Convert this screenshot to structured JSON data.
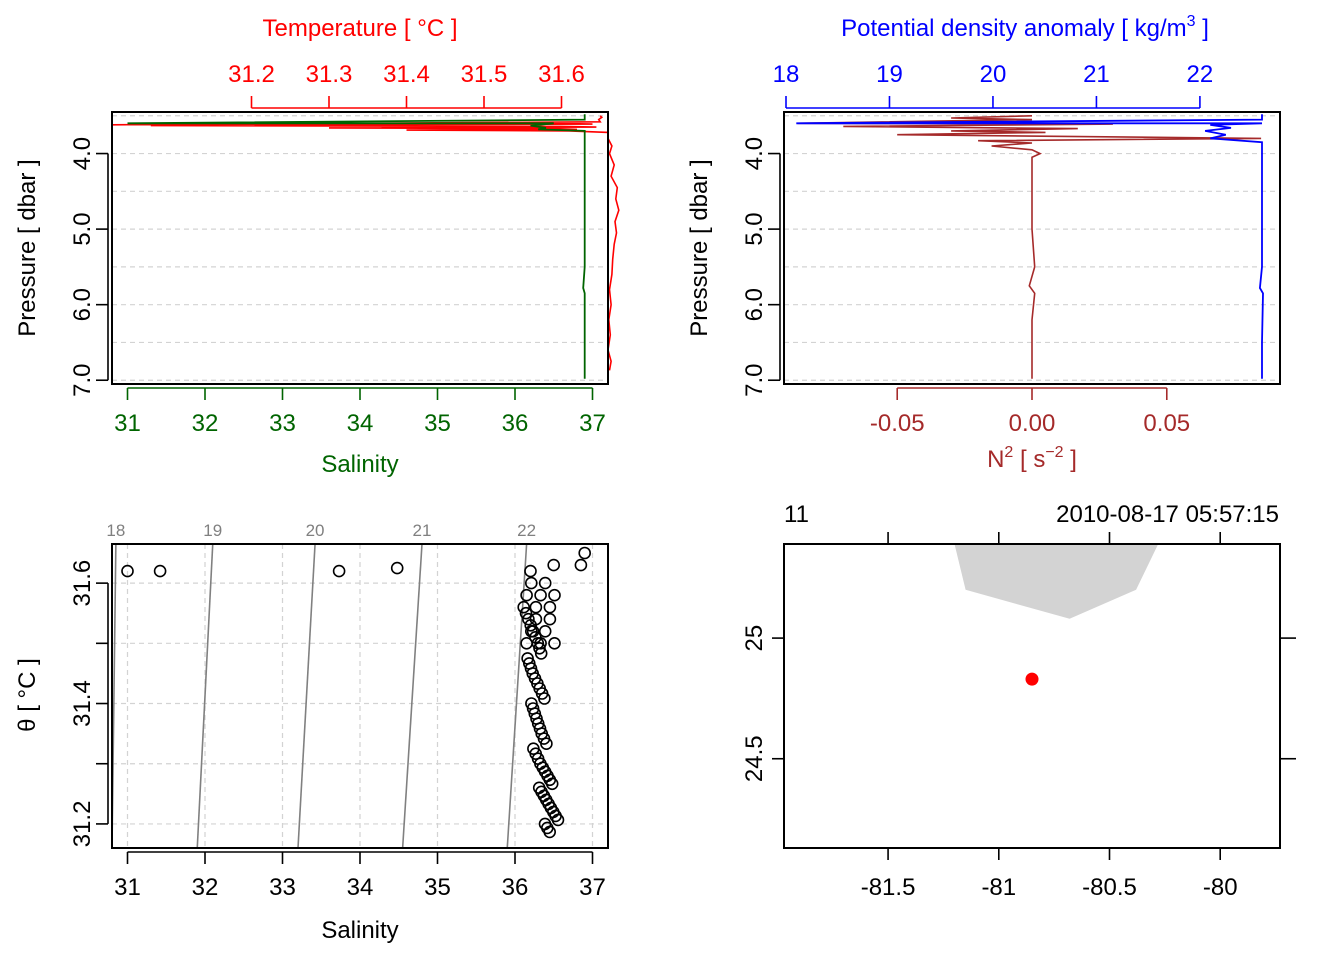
{
  "colors": {
    "temperature": "#ff0000",
    "salinity": "#006400",
    "density": "#0000ff",
    "n2": "#a52a2a",
    "isopycnal": "#808080",
    "land": "#d3d3d3",
    "station": "#ff0000",
    "grid": "#d3d3d3",
    "axis": "#000000"
  },
  "chart_data": [
    {
      "id": "profile_TS",
      "type": "line",
      "title": "Temperature [ °C ]",
      "xlabel": "Salinity",
      "ylabel": "Pressure [ dbar ]",
      "top_axis": {
        "label": "Temperature [ °C ]",
        "ticks": [
          "31.2",
          "31.3",
          "31.4",
          "31.5",
          "31.6"
        ],
        "range": [
          31.02,
          31.66
        ]
      },
      "bottom_axis": {
        "label": "Salinity",
        "ticks": [
          "31",
          "32",
          "33",
          "34",
          "35",
          "36",
          "37"
        ],
        "range": [
          30.8,
          37.2
        ]
      },
      "y_axis": {
        "ticks": [
          "4.0",
          "5.0",
          "6.0",
          "7.0"
        ],
        "range": [
          3.45,
          7.05
        ],
        "reversed": true
      },
      "grid": true,
      "series": [
        {
          "name": "Temperature",
          "axis": "top",
          "points": [
            [
              31.65,
              3.5
            ],
            [
              31.652,
              3.52
            ],
            [
              31.648,
              3.55
            ],
            [
              31.65,
              3.58
            ],
            [
              31.02,
              3.62
            ],
            [
              31.59,
              3.6
            ],
            [
              31.64,
              3.61
            ],
            [
              31.07,
              3.63
            ],
            [
              31.6,
              3.64
            ],
            [
              31.645,
              3.65
            ],
            [
              31.3,
              3.66
            ],
            [
              31.59,
              3.67
            ],
            [
              31.62,
              3.68
            ],
            [
              31.4,
              3.69
            ],
            [
              31.61,
              3.7
            ],
            [
              31.66,
              3.72
            ],
            [
              31.66,
              3.8
            ],
            [
              31.665,
              3.9
            ],
            [
              31.662,
              4.0
            ],
            [
              31.668,
              4.15
            ],
            [
              31.664,
              4.3
            ],
            [
              31.672,
              4.45
            ],
            [
              31.67,
              4.6
            ],
            [
              31.674,
              4.75
            ],
            [
              31.669,
              4.9
            ],
            [
              31.671,
              5.05
            ],
            [
              31.668,
              5.2
            ],
            [
              31.666,
              5.4
            ],
            [
              31.665,
              5.6
            ],
            [
              31.662,
              5.8
            ],
            [
              31.664,
              6.0
            ],
            [
              31.661,
              6.2
            ],
            [
              31.663,
              6.4
            ],
            [
              31.66,
              6.6
            ],
            [
              31.664,
              6.75
            ],
            [
              31.662,
              6.87
            ]
          ]
        },
        {
          "name": "Salinity",
          "axis": "bottom",
          "points": [
            [
              36.9,
              3.48
            ],
            [
              36.9,
              3.55
            ],
            [
              31.0,
              3.6
            ],
            [
              36.5,
              3.6
            ],
            [
              36.2,
              3.63
            ],
            [
              36.4,
              3.66
            ],
            [
              36.3,
              3.68
            ],
            [
              36.9,
              3.7
            ],
            [
              36.9,
              4.0
            ],
            [
              36.9,
              4.5
            ],
            [
              36.9,
              5.0
            ],
            [
              36.9,
              5.5
            ],
            [
              36.88,
              5.78
            ],
            [
              36.9,
              5.85
            ],
            [
              36.9,
              6.5
            ],
            [
              36.9,
              6.98
            ]
          ]
        }
      ]
    },
    {
      "id": "profile_density_N2",
      "type": "line",
      "title": "Potential density anomaly [ kg/m^3 ]",
      "xlabel": "N^2 [ s^-2 ]",
      "ylabel": "Pressure [ dbar ]",
      "top_axis": {
        "label_main": "Potential density anomaly [ kg/m",
        "label_sup": "3",
        "label_end": " ]",
        "ticks": [
          "18",
          "19",
          "20",
          "21",
          "22"
        ],
        "range": [
          18.0,
          22.6
        ]
      },
      "bottom_axis": {
        "label_main": "N",
        "label_sup": "2",
        "label_mid": " [ s",
        "label_sup2": "−2",
        "label_end": " ]",
        "ticks": [
          "-0.05",
          "0.00",
          "0.05"
        ],
        "range": [
          -0.092,
          0.092
        ]
      },
      "y_axis": {
        "ticks": [
          "4.0",
          "5.0",
          "6.0",
          "7.0"
        ],
        "range": [
          3.45,
          7.05
        ],
        "reversed": true
      },
      "grid": true,
      "series": [
        {
          "name": "Potential density anomaly",
          "axis": "top",
          "points": [
            [
              22.6,
              3.48
            ],
            [
              22.6,
              3.55
            ],
            [
              18.1,
              3.6
            ],
            [
              22.6,
              3.6
            ],
            [
              22.1,
              3.62
            ],
            [
              22.3,
              3.66
            ],
            [
              22.05,
              3.7
            ],
            [
              22.25,
              3.75
            ],
            [
              22.1,
              3.8
            ],
            [
              22.6,
              3.85
            ],
            [
              22.6,
              4.5
            ],
            [
              22.6,
              5.5
            ],
            [
              22.58,
              5.78
            ],
            [
              22.61,
              5.85
            ],
            [
              22.6,
              6.5
            ],
            [
              22.6,
              6.98
            ]
          ]
        },
        {
          "name": "N2",
          "axis": "bottom",
          "points": [
            [
              0.0,
              3.5
            ],
            [
              -0.03,
              3.53
            ],
            [
              0.0,
              3.55
            ],
            [
              -0.087,
              3.6
            ],
            [
              0.03,
              3.61
            ],
            [
              -0.07,
              3.64
            ],
            [
              0.017,
              3.67
            ],
            [
              -0.03,
              3.7
            ],
            [
              0.005,
              3.72
            ],
            [
              -0.05,
              3.75
            ],
            [
              0.085,
              3.8
            ],
            [
              -0.02,
              3.83
            ],
            [
              0.0,
              3.86
            ],
            [
              -0.015,
              3.9
            ],
            [
              0.0,
              3.95
            ],
            [
              0.003,
              4.0
            ],
            [
              0.0,
              4.05
            ],
            [
              0.0,
              5.0
            ],
            [
              0.001,
              5.5
            ],
            [
              -0.001,
              5.75
            ],
            [
              0.001,
              5.85
            ],
            [
              0.0,
              6.2
            ],
            [
              0.0,
              6.98
            ]
          ]
        }
      ]
    },
    {
      "id": "TS_diagram",
      "type": "scatter",
      "xlabel": "Salinity",
      "ylabel": "θ [ °C ]",
      "x_axis": {
        "ticks": [
          "31",
          "32",
          "33",
          "34",
          "35",
          "36",
          "37"
        ],
        "range": [
          30.8,
          37.2
        ]
      },
      "y_axis": {
        "ticks": [
          "31.2",
          "31.4",
          "31.6"
        ],
        "range": [
          31.16,
          31.665
        ]
      },
      "grid": true,
      "isopycnals": [
        {
          "label": "18",
          "S_bottom": 30.65,
          "S_top": 30.85
        },
        {
          "label": "19",
          "S_bottom": 31.9,
          "S_top": 32.1
        },
        {
          "label": "20",
          "S_bottom": 33.2,
          "S_top": 33.42
        },
        {
          "label": "21",
          "S_bottom": 34.55,
          "S_top": 34.8
        },
        {
          "label": "22",
          "S_bottom": 35.9,
          "S_top": 36.15
        }
      ],
      "outliers": [
        [
          31.0,
          31.62
        ],
        [
          31.42,
          31.62
        ],
        [
          33.73,
          31.62
        ],
        [
          34.48,
          31.625
        ]
      ],
      "cluster": [
        [
          36.2,
          31.56
        ],
        [
          36.25,
          31.5
        ],
        [
          36.25,
          31.45
        ],
        [
          36.3,
          31.4
        ],
        [
          36.3,
          31.35
        ],
        [
          36.35,
          31.3
        ],
        [
          36.4,
          31.26
        ],
        [
          36.45,
          31.22
        ],
        [
          36.5,
          31.18
        ]
      ],
      "surface_points": [
        [
          36.2,
          31.62
        ],
        [
          36.5,
          31.63
        ],
        [
          36.85,
          31.63
        ],
        [
          36.9,
          31.65
        ]
      ]
    },
    {
      "id": "station_map",
      "type": "map",
      "header_left": "11",
      "header_right": "2010-08-17 05:57:15",
      "x_axis": {
        "ticks": [
          "-81.5",
          "-81",
          "-80.5",
          "-80"
        ],
        "range": [
          -81.97,
          -79.73
        ]
      },
      "y_axis": {
        "ticks": [
          "24.5",
          "25"
        ],
        "range": [
          24.13,
          25.39
        ]
      },
      "land": [
        [
          -81.2,
          25.39
        ],
        [
          -80.28,
          25.39
        ],
        [
          -80.38,
          25.2
        ],
        [
          -80.68,
          25.08
        ],
        [
          -81.15,
          25.2
        ]
      ],
      "station": {
        "lon": -80.85,
        "lat": 24.83
      }
    }
  ]
}
